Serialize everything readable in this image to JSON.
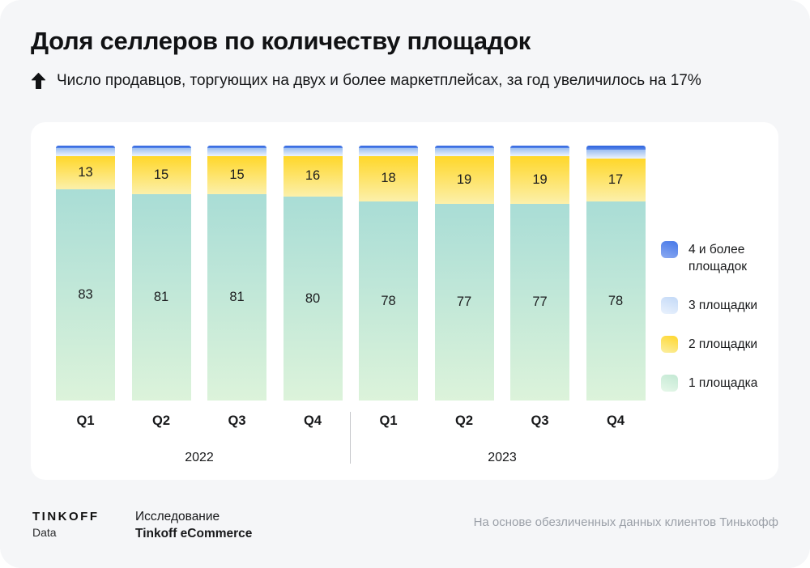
{
  "header": {
    "title": "Доля селлеров по количеству площадок",
    "subtitle": "Число продавцов, торгующих на двух и более маркетплейсах, за год увеличилось на 17%"
  },
  "chart_data": {
    "type": "bar",
    "stacked": true,
    "unit": "percent of sellers",
    "ylim": [
      0,
      100
    ],
    "categories": [
      "Q1",
      "Q2",
      "Q3",
      "Q4",
      "Q1",
      "Q2",
      "Q3",
      "Q4"
    ],
    "groups": [
      {
        "label": "2022",
        "bars": [
          0,
          3
        ]
      },
      {
        "label": "2023",
        "bars": [
          4,
          7
        ]
      }
    ],
    "series": [
      {
        "name": "1 площадка",
        "values": [
          83,
          81,
          81,
          80,
          78,
          77,
          77,
          78
        ],
        "labels_shown": true,
        "color_top": "#a9ddd6",
        "color_bottom": "#dcf3da"
      },
      {
        "name": "2 площадки",
        "values": [
          13,
          15,
          15,
          16,
          18,
          19,
          19,
          17
        ],
        "labels_shown": true,
        "color_top": "#ffd72a",
        "color_bottom": "#fcf0ab"
      },
      {
        "name": "3 площадки",
        "values": [
          3,
          3,
          3,
          3,
          3,
          3,
          3,
          3.5
        ],
        "labels_shown": false,
        "estimated": true,
        "color_top": "#9cbef0",
        "color_bottom": "#edf4fd"
      },
      {
        "name": "4 и более площадок",
        "values": [
          1,
          1,
          1,
          1,
          1,
          1,
          1,
          1.5
        ],
        "labels_shown": false,
        "estimated": true,
        "color_top": "#2d62dd",
        "color_bottom": "#5988ea"
      }
    ]
  },
  "legend": {
    "items": [
      {
        "label": "4 и более площадок",
        "color_top": "#4678e8",
        "color_bottom": "#8caaf1"
      },
      {
        "label": "3 площадки",
        "color_top": "#c3d9f7",
        "color_bottom": "#eaf2fd"
      },
      {
        "label": "2 площадки",
        "color_top": "#ffd62c",
        "color_bottom": "#fbefa3"
      },
      {
        "label": "1 площадка",
        "color_top": "#c2e8d3",
        "color_bottom": "#e7f8ea"
      }
    ]
  },
  "footer": {
    "brand_name": "TINKOFF",
    "brand_sub": "Data",
    "study_line1": "Исследование",
    "study_line2": "Tinkoff eCommerce",
    "source_note": "На основе обезличенных данных клиентов Тинькофф"
  },
  "colors": {
    "page_bg": "#f5f6f8",
    "card_bg": "#ffffff",
    "text": "#17181a",
    "muted": "#9ba0a8"
  }
}
